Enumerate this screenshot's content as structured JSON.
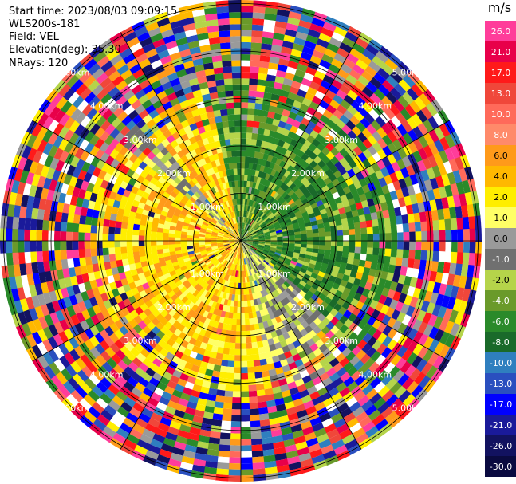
{
  "header": {
    "start_time": "Start time: 2023/08/03 09:09:15",
    "instrument": "WLS200s-181",
    "field": "Field: VEL",
    "elevation": "Elevation(deg): 35.30",
    "nrays": "NRays: 120"
  },
  "colorbar": {
    "unit": "m/s",
    "labels": [
      "26.0",
      "21.0",
      "17.0",
      "13.0",
      "10.0",
      "8.0",
      "6.0",
      "4.0",
      "2.0",
      "1.0",
      "0.0",
      "-1.0",
      "-2.0",
      "-4.0",
      "-6.0",
      "-8.0",
      "-10.0",
      "-13.0",
      "-17.0",
      "-21.0",
      "-26.0",
      "-30.0"
    ],
    "colors": [
      "#ff3d9a",
      "#e8004a",
      "#ff1a1a",
      "#f0473a",
      "#ff6a5a",
      "#ff8a6a",
      "#ff9a1a",
      "#ffb800",
      "#ffee00",
      "#ffff66",
      "#9a9a9a",
      "#707070",
      "#b5d44a",
      "#6a9a2a",
      "#2a8a2a",
      "#1a6a2a",
      "#2f7fbf",
      "#2a4fbf",
      "#0000ff",
      "#1a1a9a",
      "#121260",
      "#0a0a40"
    ]
  },
  "range_rings": {
    "labels": [
      "1.00km",
      "2.00km",
      "3.00km",
      "4.00km",
      "5.00km"
    ]
  },
  "palettes": {
    "near_left": [
      "#ffee00",
      "#ffb800",
      "#ff9a1a",
      "#ffee00",
      "#ffff66"
    ],
    "near_right": [
      "#2a8a2a",
      "#6a9a2a",
      "#1a6a2a",
      "#b5d44a",
      "#2a8a2a"
    ],
    "transition": [
      "#9a9a9a",
      "#707070",
      "#b5d44a",
      "#ffff66"
    ],
    "noise": [
      "#ff3d9a",
      "#e8004a",
      "#ff1a1a",
      "#ffb800",
      "#ffee00",
      "#2a8a2a",
      "#6a9a2a",
      "#0000ff",
      "#1a1a9a",
      "#2a4fbf",
      "#9a9a9a",
      "#ff9a1a",
      "#ffffff",
      "#b5d44a",
      "#f0473a",
      "#ff6a5a",
      "#121260",
      "#2f7fbf"
    ]
  }
}
